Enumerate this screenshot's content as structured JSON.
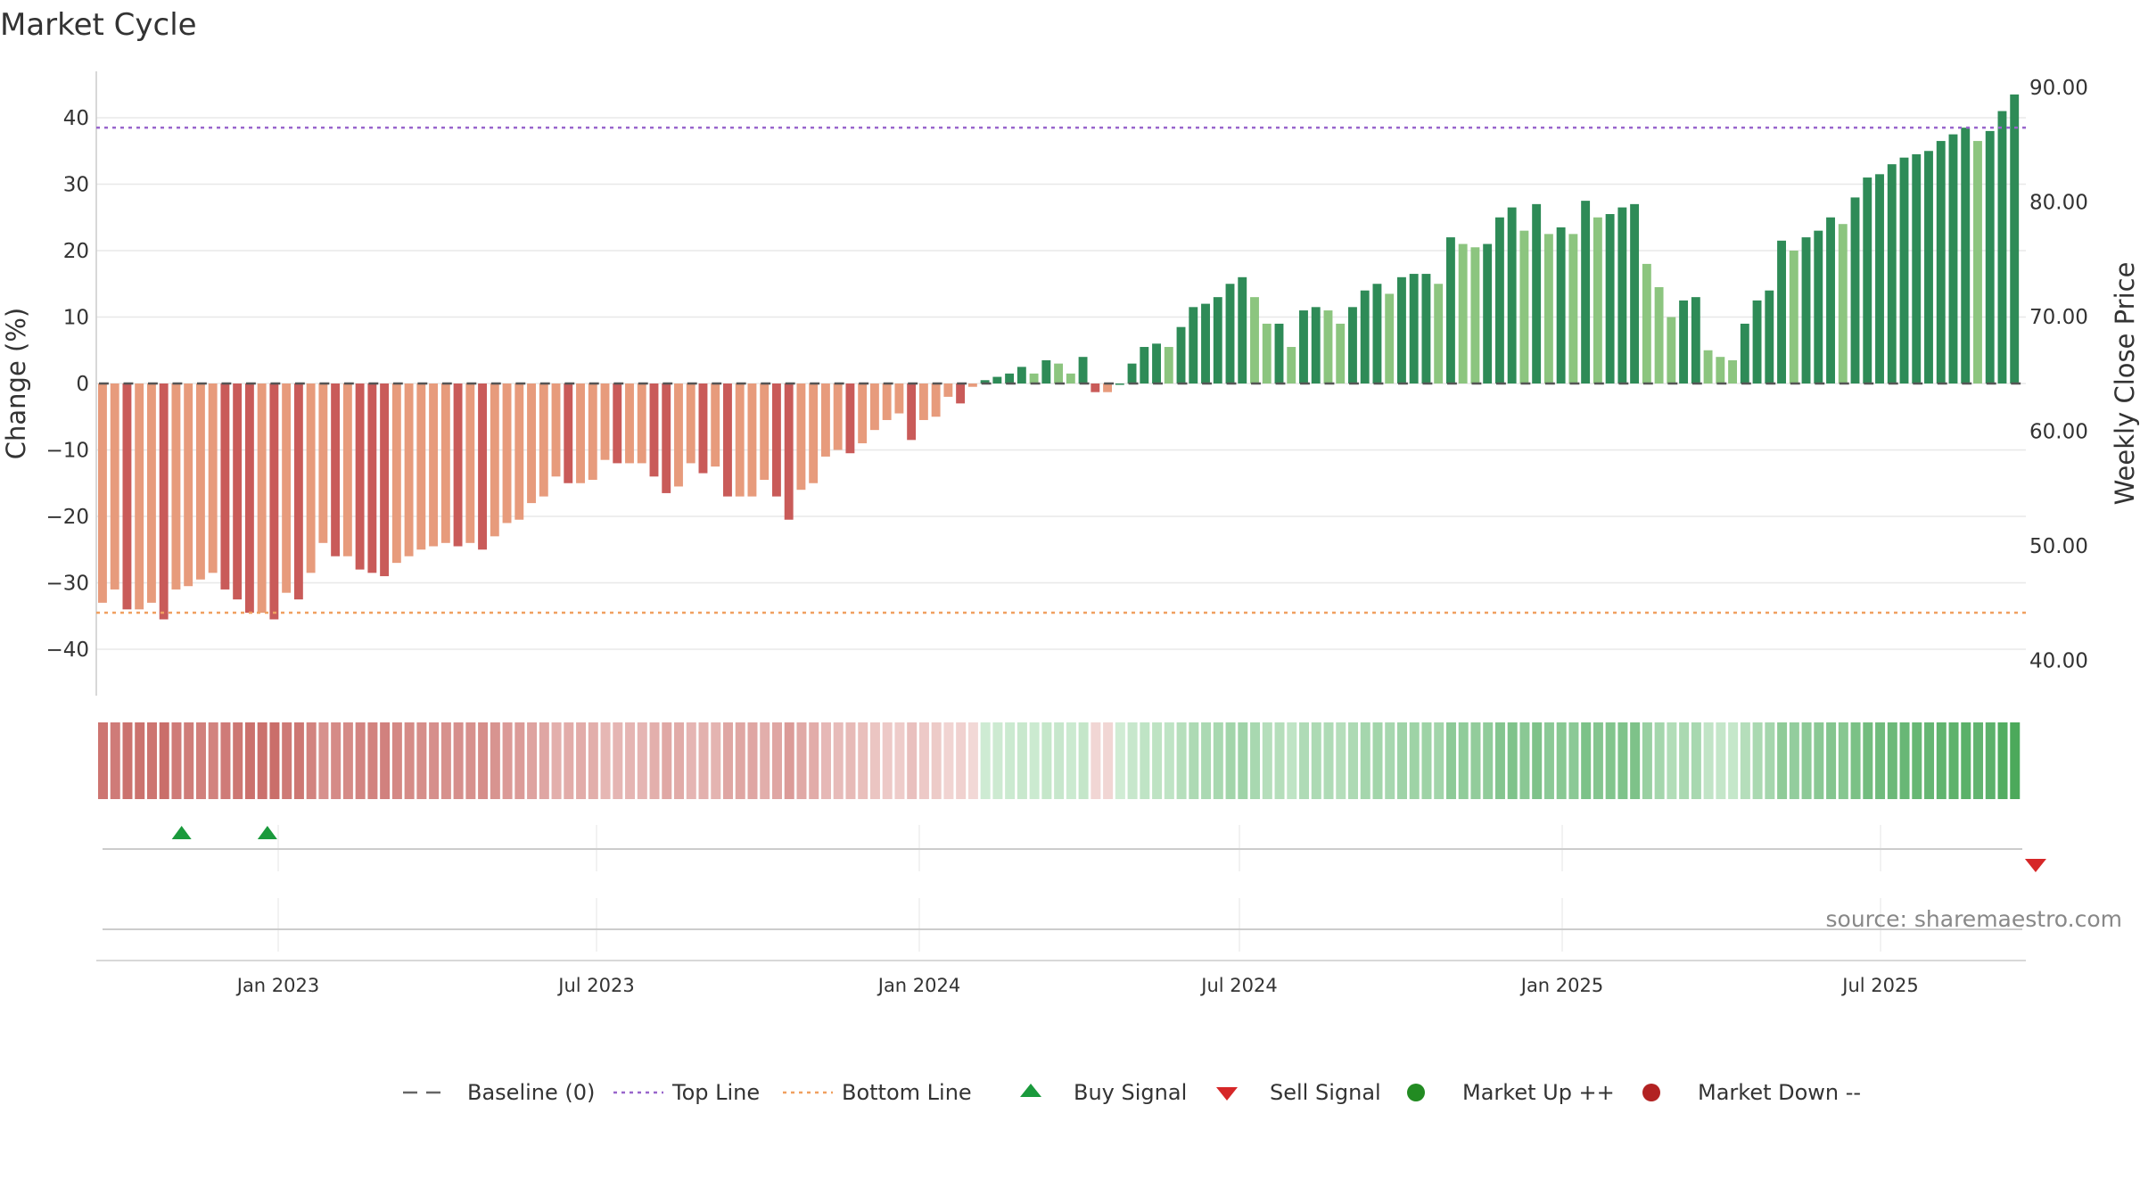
{
  "chart_data": {
    "type": "bar",
    "title": "Market Cycle",
    "ylabel_left": "Change (%)",
    "ylabel_right": "Weekly Close Price",
    "left_ticks": [
      40,
      30,
      20,
      10,
      0,
      -10,
      -20,
      -30,
      -40
    ],
    "left_tick_labels": [
      "40",
      "30",
      "20",
      "10",
      "0",
      "−10",
      "−20",
      "−30",
      "−40"
    ],
    "right_tick_labels": [
      "90.00",
      "80.00",
      "70.00",
      "60.00",
      "50.00",
      "40.00"
    ],
    "ylim": [
      -47,
      47
    ],
    "top_line": 38.5,
    "bottom_line": -34.5,
    "x_tick_labels": [
      "Jan 2023",
      "Jul 2023",
      "Jan 2024",
      "Jul 2024",
      "Jan 2025",
      "Jul 2025"
    ],
    "buy_signal_bars": [
      5,
      12
    ],
    "sell_signal_bars": [
      157
    ],
    "source": "source: sharemaestro.com",
    "values": [
      -33,
      -31,
      -34,
      -34,
      -33,
      -35.5,
      -31,
      -30.5,
      -29.5,
      -28.5,
      -31,
      -32.5,
      -34.5,
      -34.5,
      -35.5,
      -31.5,
      -32.5,
      -28.5,
      -24,
      -26,
      -26,
      -28,
      -28.5,
      -29,
      -27,
      -26,
      -25,
      -24.5,
      -24,
      -24.5,
      -24,
      -25,
      -23,
      -21,
      -20.5,
      -18,
      -17,
      -14,
      -15,
      -15,
      -14.5,
      -11.5,
      -12,
      -12,
      -12,
      -14,
      -16.5,
      -15.5,
      -12,
      -13.5,
      -12.5,
      -17,
      -17,
      -17,
      -14.5,
      -17,
      -20.5,
      -16,
      -15,
      -11,
      -10,
      -10.5,
      -9,
      -7,
      -5.5,
      -4.5,
      -8.5,
      -5.5,
      -5,
      -2,
      -3,
      -0.5,
      0.5,
      1,
      1.5,
      2.5,
      1.5,
      3.5,
      3,
      1.5,
      4,
      -1.3,
      -1.3,
      0,
      3,
      5.5,
      6,
      5.5,
      8.5,
      11.5,
      12,
      13,
      15,
      16,
      13,
      9,
      9,
      5.5,
      11,
      11.5,
      11,
      9,
      11.5,
      14,
      15,
      13.5,
      16,
      16.5,
      16.5,
      15,
      22,
      21,
      20.5,
      21,
      25,
      26.5,
      23,
      27,
      22.5,
      23.5,
      22.5,
      27.5,
      25,
      25.5,
      26.5,
      27,
      18,
      14.5,
      10,
      12.5,
      13,
      5,
      4,
      3.5,
      9,
      12.5,
      14,
      21.5,
      20,
      22,
      23,
      25,
      24,
      28,
      31,
      31.5,
      33,
      34,
      34.5,
      35,
      36.5,
      37.5,
      38.5,
      36.5,
      38,
      41,
      43.5
    ],
    "legend": [
      {
        "label": "Baseline (0)",
        "symbol": "dash",
        "color": "#666666"
      },
      {
        "label": "Top Line",
        "symbol": "dot",
        "color": "#9966cc"
      },
      {
        "label": "Bottom Line",
        "symbol": "dot",
        "color": "#f0a060"
      },
      {
        "label": "Buy Signal",
        "symbol": "triangle-up",
        "color": "#1a9a3c"
      },
      {
        "label": "Sell Signal",
        "symbol": "triangle-down",
        "color": "#d62728"
      },
      {
        "label": "Market Up ++",
        "symbol": "circle",
        "color": "#228b22"
      },
      {
        "label": "Market Down --",
        "symbol": "circle",
        "color": "#b22222"
      }
    ]
  }
}
